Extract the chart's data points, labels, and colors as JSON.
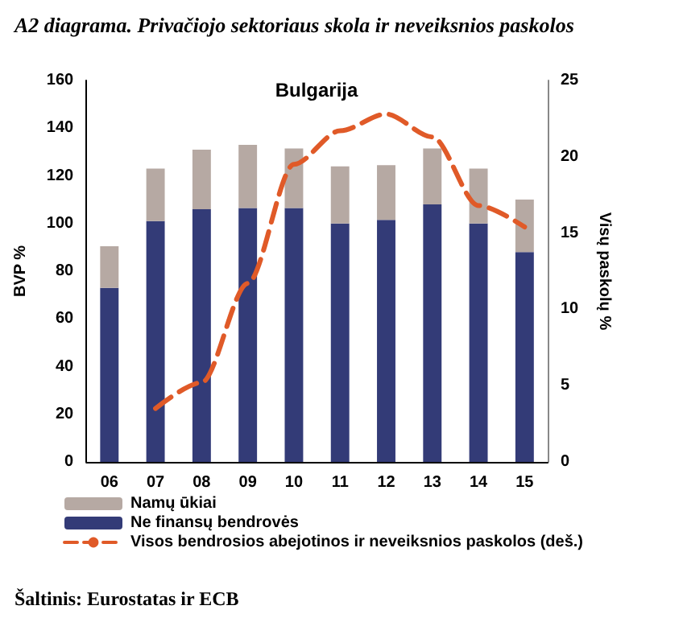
{
  "chart_data": {
    "type": "bar",
    "title": "A2 diagrama. Privačiojo sektoriaus skola ir neveiksnios paskolos",
    "subtitle": "Bulgarija",
    "ylabel": "BVP %",
    "y2label": "Visų paskolų %",
    "annotations": [
      "Šaltinis: Eurostatas ir ECB"
    ],
    "categories": [
      "06",
      "07",
      "08",
      "09",
      "10",
      "11",
      "12",
      "13",
      "14",
      "15"
    ],
    "stacked": true,
    "grid": false,
    "legend": "bottom",
    "ylim": [
      0,
      160
    ],
    "yticks": [
      0,
      20,
      40,
      60,
      80,
      100,
      120,
      140,
      160
    ],
    "y2lim": [
      0,
      25
    ],
    "y2ticks": [
      0,
      5,
      10,
      15,
      20,
      25
    ],
    "series": [
      {
        "name": "Ne finansų bendrovės",
        "color": "#333b77",
        "values": [
          73,
          101,
          106,
          106.5,
          106.5,
          100,
          101.5,
          108,
          100,
          88
        ]
      },
      {
        "name": "Namų ūkiai",
        "color": "#b6a9a3",
        "values": [
          17.5,
          22,
          25,
          26.5,
          25,
          24,
          23,
          23.5,
          23,
          22
        ]
      },
      {
        "name": "Visos bendrosios abejotinos ir neveiksnios paskolos (deš.)",
        "type": "line",
        "axis": "y2",
        "color": "#e05a28",
        "line_style": "dashed",
        "marker": "none",
        "values": [
          null,
          3.5,
          5.2,
          11.7,
          19.5,
          21.7,
          22.8,
          21.3,
          16.8,
          15.4
        ]
      }
    ]
  }
}
